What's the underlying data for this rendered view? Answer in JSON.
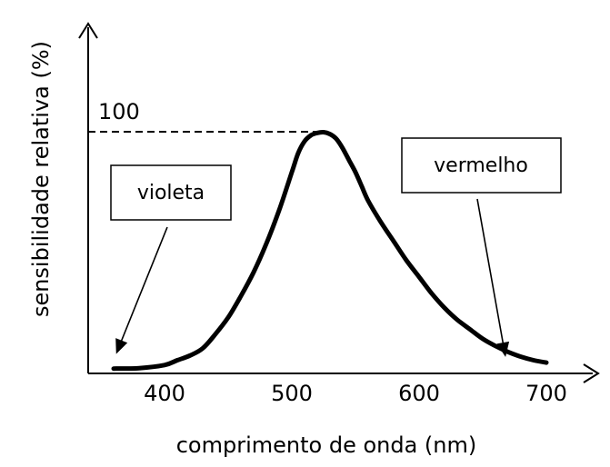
{
  "chart_data": {
    "type": "line",
    "title": "",
    "xlabel": "comprimento de onda (nm)",
    "ylabel": "sensibilidade relativa (%)",
    "x_ticks": [
      "400",
      "500",
      "600",
      "700"
    ],
    "x_tick_values": [
      400,
      500,
      600,
      700
    ],
    "xlim": [
      340,
      730
    ],
    "ylim": [
      0,
      108
    ],
    "y_ticks": [
      "100"
    ],
    "y_tick_values": [
      100
    ],
    "grid": false,
    "series": [
      {
        "x": [
          360,
          380,
          400,
          410,
          420,
          430,
          440,
          450,
          460,
          470,
          480,
          490,
          500,
          505,
          510,
          515,
          520,
          525,
          530,
          535,
          540,
          545,
          550,
          555,
          560,
          570,
          580,
          590,
          600,
          610,
          620,
          630,
          640,
          650,
          660,
          670,
          680,
          690,
          700
        ],
        "y": [
          0.5,
          0.7,
          2,
          4,
          6,
          9,
          15,
          22,
          31,
          41,
          53,
          67,
          83,
          91,
          96,
          98.5,
          99.5,
          99.8,
          99,
          97,
          93,
          88,
          83,
          77,
          71,
          62,
          54,
          46,
          39,
          32,
          26,
          21,
          17,
          13,
          10,
          7.5,
          5.5,
          4,
          3
        ],
        "color": "#000000"
      }
    ],
    "reference_line": {
      "y": 100,
      "x_from": 340,
      "x_to": 527,
      "label": "100"
    },
    "annotations": [
      {
        "text": "violeta",
        "points_to": {
          "x": 360,
          "y": 4
        }
      },
      {
        "text": "vermelho",
        "points_to": {
          "x": 700,
          "y": 6
        }
      }
    ]
  }
}
